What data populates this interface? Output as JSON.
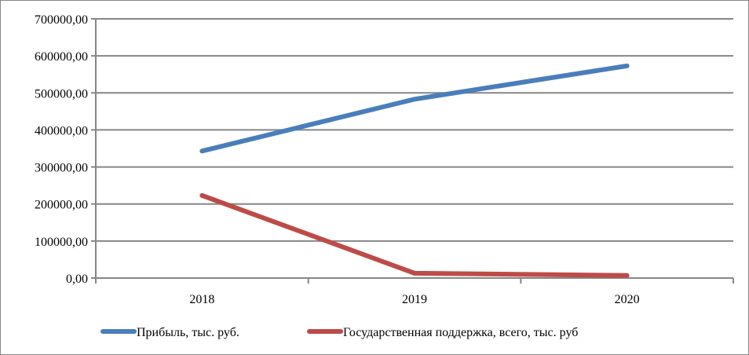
{
  "chart_data": {
    "type": "line",
    "categories": [
      "2018",
      "2019",
      "2020"
    ],
    "series": [
      {
        "name": "Прибыль, тыс. руб.",
        "color": "#4a7ebb",
        "values": [
          343000,
          483000,
          573000
        ]
      },
      {
        "name": "Государственная поддержка, всего, тыс. руб",
        "color": "#be4b48",
        "values": [
          223000,
          13000,
          7000
        ]
      }
    ],
    "ylim": [
      0,
      700000
    ],
    "yticks": [
      0,
      100000,
      200000,
      300000,
      400000,
      500000,
      600000,
      700000
    ],
    "ytick_labels": [
      "0,00",
      "100000,00",
      "200000,00",
      "300000,00",
      "400000,00",
      "500000,00",
      "600000,00",
      "700000,00"
    ],
    "grid": true,
    "legend": "bottom",
    "title": "",
    "xlabel": "",
    "ylabel": ""
  }
}
